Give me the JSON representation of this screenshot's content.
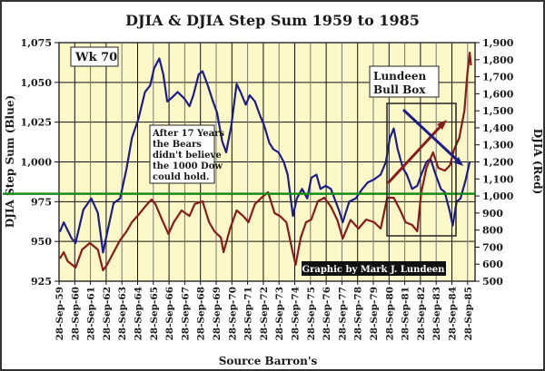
{
  "chart_data": {
    "type": "line",
    "title": "DJIA & DJIA Step Sum 1959 to 1985",
    "xlabel": "Source Barron's",
    "ylabel_left": "DJIA Step Sum (Blue)",
    "ylabel_right": "DJIA (Red)",
    "ylim_left": [
      925,
      1075
    ],
    "ylim_right": [
      500,
      1900
    ],
    "xlim": [
      "1959-09-28",
      "1985-12-31"
    ],
    "grid": true,
    "yticks_left": [
      "1,075",
      "1,050",
      "1,025",
      "1,000",
      "975",
      "950",
      "925"
    ],
    "yticks_left_values": [
      1075,
      1050,
      1025,
      1000,
      975,
      950,
      925
    ],
    "yticks_right": [
      "1,900",
      "1,800",
      "1,700",
      "1,600",
      "1,500",
      "1,400",
      "1,300",
      "1,200",
      "1,100",
      "1,000",
      "900",
      "800",
      "700",
      "600",
      "500"
    ],
    "yticks_right_values": [
      1900,
      1800,
      1700,
      1600,
      1500,
      1400,
      1300,
      1200,
      1100,
      1000,
      900,
      800,
      700,
      600,
      500
    ],
    "xticks": [
      "28-Sep-59",
      "28-Sep-60",
      "28-Sep-61",
      "28-Sep-62",
      "28-Sep-63",
      "28-Sep-64",
      "28-Sep-65",
      "28-Sep-66",
      "28-Sep-67",
      "28-Sep-68",
      "28-Sep-69",
      "28-Sep-70",
      "28-Sep-71",
      "28-Sep-72",
      "28-Sep-73",
      "28-Sep-74",
      "28-Sep-75",
      "28-Sep-76",
      "28-Sep-77",
      "28-Sep-78",
      "28-Sep-79",
      "28-Sep-80",
      "28-Sep-81",
      "28-Sep-82",
      "28-Sep-83",
      "28-Sep-84",
      "28-Sep-85"
    ],
    "reference_line": {
      "axis": "left",
      "value": 980,
      "color": "#1a8a1a"
    },
    "series": [
      {
        "axis": "left",
        "color": "#1c1c8c",
        "points": [
          [
            "1959-10",
            956
          ],
          [
            "1960-01",
            962
          ],
          [
            "1960-07",
            952
          ],
          [
            "1960-10",
            949
          ],
          [
            "1961-04",
            970
          ],
          [
            "1961-10",
            977
          ],
          [
            "1962-03",
            968
          ],
          [
            "1962-07",
            943
          ],
          [
            "1962-10",
            955
          ],
          [
            "1963-03",
            974
          ],
          [
            "1963-08",
            977
          ],
          [
            "1964-01",
            996
          ],
          [
            "1964-05",
            1015
          ],
          [
            "1964-10",
            1027
          ],
          [
            "1965-03",
            1044
          ],
          [
            "1965-07",
            1048
          ],
          [
            "1965-10",
            1059
          ],
          [
            "1966-02",
            1065
          ],
          [
            "1966-05",
            1055
          ],
          [
            "1966-08",
            1038
          ],
          [
            "1966-11",
            1040
          ],
          [
            "1967-04",
            1044
          ],
          [
            "1967-09",
            1040
          ],
          [
            "1968-01",
            1035
          ],
          [
            "1968-04",
            1042
          ],
          [
            "1968-08",
            1055
          ],
          [
            "1968-11",
            1057
          ],
          [
            "1969-03",
            1048
          ],
          [
            "1969-07",
            1038
          ],
          [
            "1969-10",
            1031
          ],
          [
            "1970-02",
            1013
          ],
          [
            "1970-05",
            1006
          ],
          [
            "1970-09",
            1023
          ],
          [
            "1971-01",
            1049
          ],
          [
            "1971-04",
            1044
          ],
          [
            "1971-08",
            1036
          ],
          [
            "1971-11",
            1042
          ],
          [
            "1972-03",
            1038
          ],
          [
            "1972-07",
            1029
          ],
          [
            "1972-10",
            1023
          ],
          [
            "1973-02",
            1012
          ],
          [
            "1973-05",
            1008
          ],
          [
            "1973-09",
            1006
          ],
          [
            "1974-01",
            1000
          ],
          [
            "1974-04",
            992
          ],
          [
            "1974-08",
            966
          ],
          [
            "1974-11",
            977
          ],
          [
            "1975-03",
            983
          ],
          [
            "1975-07",
            977
          ],
          [
            "1975-10",
            990
          ],
          [
            "1976-02",
            992
          ],
          [
            "1976-05",
            983
          ],
          [
            "1976-09",
            985
          ],
          [
            "1977-01",
            983
          ],
          [
            "1977-07",
            970
          ],
          [
            "1977-10",
            962
          ],
          [
            "1978-03",
            975
          ],
          [
            "1978-08",
            977
          ],
          [
            "1979-01",
            983
          ],
          [
            "1979-05",
            987
          ],
          [
            "1979-10",
            989
          ],
          [
            "1980-03",
            992
          ],
          [
            "1980-07",
            1000
          ],
          [
            "1980-10",
            1015
          ],
          [
            "1981-01",
            1021
          ],
          [
            "1981-04",
            1008
          ],
          [
            "1981-08",
            996
          ],
          [
            "1981-11",
            992
          ],
          [
            "1982-03",
            983
          ],
          [
            "1982-07",
            985
          ],
          [
            "1982-10",
            992
          ],
          [
            "1983-02",
            1000
          ],
          [
            "1983-05",
            1002
          ],
          [
            "1983-09",
            992
          ],
          [
            "1984-01",
            983
          ],
          [
            "1984-04",
            981
          ],
          [
            "1984-08",
            968
          ],
          [
            "1984-10",
            960
          ],
          [
            "1985-01",
            975
          ],
          [
            "1985-04",
            977
          ],
          [
            "1985-08",
            989
          ],
          [
            "1985-11",
            1000
          ]
        ]
      },
      {
        "axis": "right",
        "color": "#8b1a1a",
        "points": [
          [
            "1959-10",
            633
          ],
          [
            "1960-01",
            670
          ],
          [
            "1960-04",
            617
          ],
          [
            "1960-10",
            580
          ],
          [
            "1961-03",
            686
          ],
          [
            "1961-09",
            724
          ],
          [
            "1962-03",
            686
          ],
          [
            "1962-07",
            564
          ],
          [
            "1962-10",
            596
          ],
          [
            "1963-03",
            670
          ],
          [
            "1963-08",
            740
          ],
          [
            "1964-01",
            793
          ],
          [
            "1964-05",
            846
          ],
          [
            "1964-10",
            889
          ],
          [
            "1965-03",
            937
          ],
          [
            "1965-08",
            979
          ],
          [
            "1965-11",
            953
          ],
          [
            "1966-04",
            862
          ],
          [
            "1966-09",
            777
          ],
          [
            "1967-01",
            846
          ],
          [
            "1967-07",
            915
          ],
          [
            "1968-01",
            883
          ],
          [
            "1968-05",
            953
          ],
          [
            "1968-11",
            969
          ],
          [
            "1969-04",
            846
          ],
          [
            "1969-08",
            793
          ],
          [
            "1970-01",
            756
          ],
          [
            "1970-03",
            670
          ],
          [
            "1970-08",
            809
          ],
          [
            "1971-01",
            915
          ],
          [
            "1971-06",
            883
          ],
          [
            "1971-10",
            846
          ],
          [
            "1972-03",
            953
          ],
          [
            "1972-08",
            990
          ],
          [
            "1973-01",
            1022
          ],
          [
            "1973-06",
            899
          ],
          [
            "1973-10",
            883
          ],
          [
            "1974-03",
            846
          ],
          [
            "1974-07",
            702
          ],
          [
            "1974-10",
            596
          ],
          [
            "1975-02",
            756
          ],
          [
            "1975-06",
            846
          ],
          [
            "1975-10",
            862
          ],
          [
            "1976-03",
            969
          ],
          [
            "1976-08",
            990
          ],
          [
            "1977-01",
            937
          ],
          [
            "1977-06",
            857
          ],
          [
            "1977-10",
            750
          ],
          [
            "1978-04",
            860
          ],
          [
            "1978-10",
            809
          ],
          [
            "1979-04",
            862
          ],
          [
            "1979-10",
            846
          ],
          [
            "1980-03",
            809
          ],
          [
            "1980-08",
            990
          ],
          [
            "1981-01",
            990
          ],
          [
            "1981-06",
            915
          ],
          [
            "1981-10",
            846
          ],
          [
            "1982-03",
            830
          ],
          [
            "1982-07",
            793
          ],
          [
            "1982-10",
            1022
          ],
          [
            "1983-02",
            1165
          ],
          [
            "1983-07",
            1256
          ],
          [
            "1983-11",
            1165
          ],
          [
            "1984-04",
            1149
          ],
          [
            "1984-08",
            1181
          ],
          [
            "1984-11",
            1272
          ],
          [
            "1985-03",
            1341
          ],
          [
            "1985-07",
            1501
          ],
          [
            "1985-09",
            1698
          ],
          [
            "1985-11",
            1841
          ],
          [
            "1985-12",
            1767
          ]
        ]
      }
    ],
    "annotations": {
      "week_label": "Wk 70",
      "bears_note": [
        "After 17 Years",
        "the Bears",
        "didn't believe",
        "the 1000 Dow",
        "could hold."
      ],
      "bull_box_label": [
        "Lundeen",
        "Bull Box"
      ],
      "credit": "Graphic by Mark J. Lundeen"
    },
    "colors": {
      "plot_background": "#fdf8c8",
      "grid": "#111111",
      "blue": "#1c1c8c",
      "red": "#8b1a1a",
      "green": "#1a8a1a"
    }
  }
}
